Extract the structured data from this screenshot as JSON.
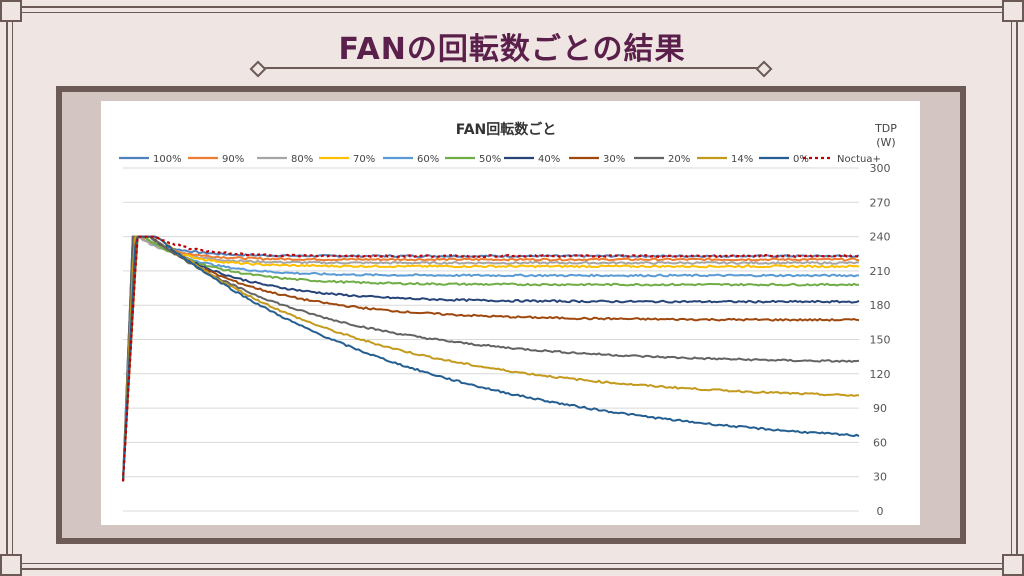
{
  "slide": {
    "title": "FANの回転数ごとの結果"
  },
  "chart_data": {
    "type": "line",
    "title": "FAN回転数ごと",
    "ylabel": "TDP\n(W)",
    "ylim": [
      0,
      300
    ],
    "yticks": [
      0,
      30,
      60,
      90,
      120,
      150,
      180,
      210,
      240,
      270,
      300
    ],
    "grid": true,
    "legend_position": "top",
    "series": [
      {
        "name": "100%",
        "color": "#4f81bd",
        "peak": 240,
        "final": 223,
        "tau": 15
      },
      {
        "name": "90%",
        "color": "#ed7d31",
        "peak": 240,
        "final": 220,
        "tau": 15
      },
      {
        "name": "80%",
        "color": "#a5a5a5",
        "peak": 240,
        "final": 217,
        "tau": 16
      },
      {
        "name": "70%",
        "color": "#ffc000",
        "peak": 240,
        "final": 214,
        "tau": 17
      },
      {
        "name": "60%",
        "color": "#5b9bd5",
        "peak": 240,
        "final": 206,
        "tau": 22
      },
      {
        "name": "50%",
        "color": "#70ad47",
        "peak": 240,
        "final": 198,
        "tau": 28
      },
      {
        "name": "40%",
        "color": "#264478",
        "peak": 240,
        "final": 183,
        "tau": 35
      },
      {
        "name": "30%",
        "color": "#9e480e",
        "peak": 240,
        "final": 167,
        "tau": 45
      },
      {
        "name": "20%",
        "color": "#636363",
        "peak": 240,
        "final": 129,
        "tau": 70
      },
      {
        "name": "14%",
        "color": "#c49a1c",
        "peak": 240,
        "final": 96,
        "tau": 85
      },
      {
        "name": "0%",
        "color": "#255e91",
        "peak": 240,
        "final": 52,
        "tau": 110
      },
      {
        "name": "Noctua+",
        "color": "#c00000",
        "peak": 240,
        "final": 223,
        "tau": 15,
        "dashed": true
      }
    ]
  }
}
